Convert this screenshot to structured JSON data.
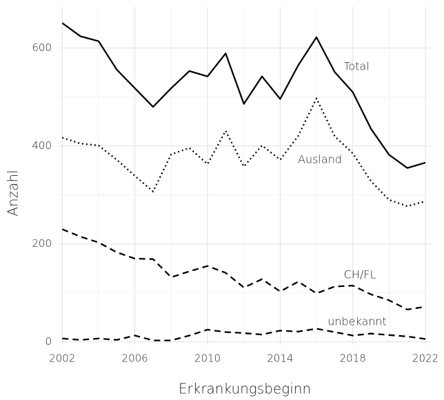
{
  "chart_data": {
    "type": "line",
    "x_label": "Erkrankungsbeginn",
    "y_label": "Anzahl",
    "x": [
      2002,
      2003,
      2004,
      2005,
      2006,
      2007,
      2008,
      2009,
      2010,
      2011,
      2012,
      2013,
      2014,
      2015,
      2016,
      2017,
      2018,
      2019,
      2020,
      2021,
      2022
    ],
    "series": [
      {
        "name": "Total",
        "color": "#000000",
        "dash": "solid",
        "values": [
          651,
          624,
          614,
          556,
          518,
          480,
          518,
          553,
          542,
          589,
          486,
          542,
          496,
          565,
          622,
          551,
          510,
          435,
          382,
          355,
          366
        ]
      },
      {
        "name": "Ausland",
        "color": "#000000",
        "dash": "dotted",
        "values": [
          417,
          405,
          401,
          372,
          339,
          307,
          383,
          396,
          363,
          431,
          358,
          401,
          372,
          421,
          497,
          420,
          385,
          328,
          290,
          277,
          287
        ]
      },
      {
        "name": "CH/FL",
        "color": "#000000",
        "dash": "dashed",
        "values": [
          230,
          215,
          203,
          183,
          170,
          169,
          132,
          144,
          155,
          141,
          111,
          128,
          103,
          123,
          99,
          113,
          115,
          97,
          85,
          66,
          72
        ]
      },
      {
        "name": "unbekannt",
        "color": "#000000",
        "dash": "dashed",
        "values": [
          7,
          4,
          7,
          4,
          13,
          3,
          3,
          13,
          25,
          20,
          18,
          15,
          23,
          21,
          27,
          20,
          13,
          17,
          14,
          11,
          6
        ]
      }
    ],
    "xlim": [
      2001.8,
      2022.3
    ],
    "xticks": [
      2002,
      2006,
      2010,
      2014,
      2018,
      2022
    ],
    "ylim": [
      -6,
      684
    ],
    "yticks": [
      0,
      200,
      400,
      600
    ],
    "grid": true
  }
}
